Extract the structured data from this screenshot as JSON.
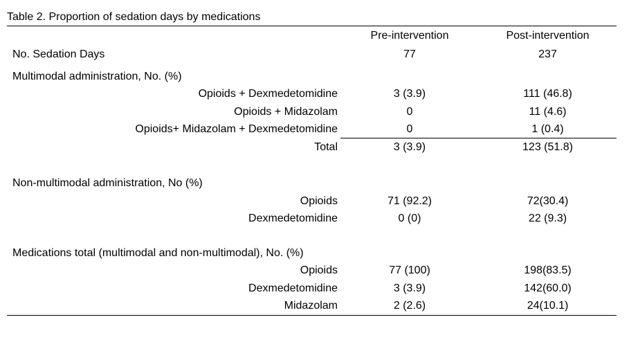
{
  "title": "Table 2. Proportion of sedation days by medications",
  "columns": [
    "Pre-intervention",
    "Post-intervention"
  ],
  "sedation_days": {
    "label": "No. Sedation Days",
    "pre": "77",
    "post": "237"
  },
  "sections": [
    {
      "heading": "Multimodal administration, No. (%)",
      "rows": [
        {
          "label": "Opioids + Dexmedetomidine",
          "pre": "3 (3.9)",
          "post": "111 (46.8)"
        },
        {
          "label": "Opioids + Midazolam",
          "pre": "0",
          "post": "11 (4.6)"
        },
        {
          "label": "Opioids+ Midazolam + Dexmedetomidine",
          "pre": "0",
          "post": "1 (0.4)"
        },
        {
          "label": "Total",
          "pre": "3 (3.9)",
          "post": "123 (51.8)"
        }
      ]
    },
    {
      "heading": "Non-multimodal administration, No (%)",
      "rows": [
        {
          "label": "Opioids",
          "pre": "71 (92.2)",
          "post": "72(30.4)"
        },
        {
          "label": "Dexmedetomidine",
          "pre": "0 (0)",
          "post": "22 (9.3)"
        }
      ]
    },
    {
      "heading": "Medications total (multimodal and non-multimodal), No. (%)",
      "rows": [
        {
          "label": "Opioids",
          "pre": "77 (100)",
          "post": "198(83.5)"
        },
        {
          "label": "Dexmedetomidine",
          "pre": "3 (3.9)",
          "post": "142(60.0)"
        },
        {
          "label": "Midazolam",
          "pre": "2 (2.6)",
          "post": "24(10.1)"
        }
      ]
    }
  ]
}
